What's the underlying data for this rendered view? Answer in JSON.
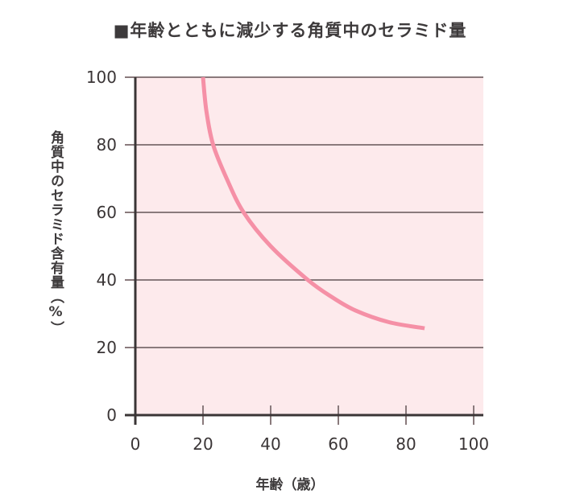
{
  "chart": {
    "title": "■年齢とともに減少する角質中のセラミド量",
    "xlabel": "年齢（歳）",
    "ylabel": "角質中のセラミド含有量（%）"
  },
  "colors": {
    "plot_background": "#fdeaec",
    "curve": "#f590a6",
    "gridline": "#8a7a7c",
    "axis": "#3a3536",
    "text": "#3a3536"
  },
  "chart_data": {
    "type": "line",
    "title": "■年齢とともに減少する角質中のセラミド量",
    "xlabel": "年齢（歳）",
    "ylabel": "角質中のセラミド含有量（%）",
    "xlim": [
      0,
      100
    ],
    "ylim": [
      0,
      100
    ],
    "xticks": [
      0,
      20,
      40,
      60,
      80,
      100
    ],
    "yticks": [
      0,
      20,
      40,
      60,
      80,
      100
    ],
    "grid": "horizontal",
    "legend": null,
    "series": [
      {
        "name": "セラミド含有量",
        "x": [
          20,
          21,
          23,
          27,
          32,
          40,
          51,
          58,
          65,
          75,
          85.5
        ],
        "y": [
          100,
          90,
          80,
          70,
          60,
          50,
          40,
          35,
          31,
          27.5,
          25.7
        ]
      }
    ]
  }
}
